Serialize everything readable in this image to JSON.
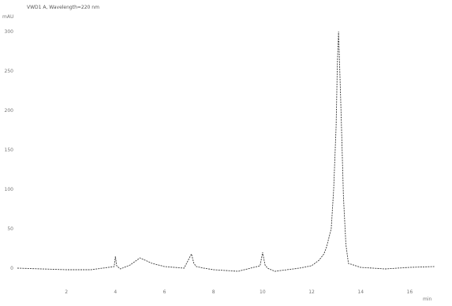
{
  "chart_data": {
    "type": "line",
    "title": "VWD1 A, Wavelength=220 nm",
    "corner_label": "mAU",
    "x_unit_label": "min",
    "y_tick_labels": [
      "300",
      "250",
      "200",
      "150",
      "100",
      "50",
      "0"
    ],
    "y_ticks": [
      300,
      250,
      200,
      150,
      100,
      50,
      0
    ],
    "x_tick_labels": [
      "2",
      "4",
      "6",
      "8",
      "10",
      "12",
      "14",
      "16"
    ],
    "x_ticks": [
      2,
      4,
      6,
      8,
      10,
      12,
      14,
      16
    ],
    "xlim": [
      0,
      17.5
    ],
    "ylim": [
      -12,
      320
    ],
    "grid": false,
    "series": [
      {
        "color": "#3a3a3a",
        "x": [
          0.0,
          1.0,
          2.0,
          3.0,
          3.95,
          4.0,
          4.05,
          4.2,
          4.6,
          5.0,
          5.5,
          6.0,
          6.8,
          7.1,
          7.2,
          7.3,
          7.6,
          8.0,
          9.0,
          9.9,
          10.0,
          10.1,
          10.2,
          10.5,
          11.0,
          11.5,
          12.0,
          12.3,
          12.5,
          12.6,
          12.8,
          12.9,
          13.0,
          13.05,
          13.1,
          13.2,
          13.3,
          13.4,
          13.5,
          14.0,
          15.0,
          16.0,
          17.0
        ],
        "y": [
          0,
          -1,
          -2,
          -2,
          2,
          15,
          3,
          -1,
          4,
          13,
          6,
          2,
          0,
          18,
          6,
          2,
          0,
          -2,
          -4,
          3,
          20,
          4,
          0,
          -4,
          -2,
          0,
          3,
          10,
          18,
          26,
          50,
          100,
          180,
          260,
          300,
          200,
          90,
          30,
          6,
          1,
          -1,
          1,
          2
        ]
      }
    ]
  }
}
